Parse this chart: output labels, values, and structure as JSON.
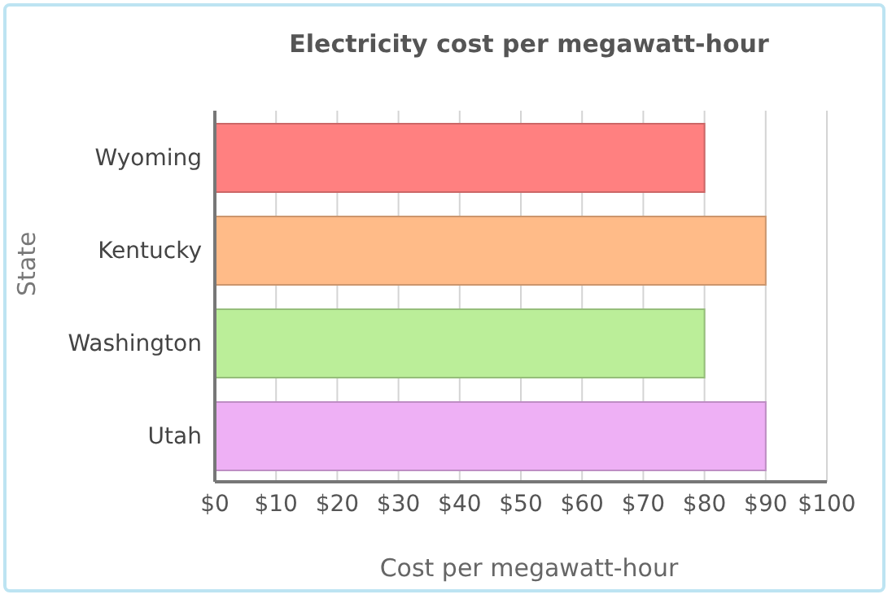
{
  "chart_data": {
    "type": "bar",
    "orientation": "horizontal",
    "title": "Electricity cost per megawatt-hour",
    "xlabel": "Cost per megawatt-hour",
    "ylabel": "State",
    "categories": [
      "Wyoming",
      "Kentucky",
      "Washington",
      "Utah"
    ],
    "values": [
      80,
      90,
      80,
      90
    ],
    "colors": [
      "#ff8080",
      "#ffbb88",
      "#bbee99",
      "#eeb0f5"
    ],
    "xlim": [
      0,
      100
    ],
    "xticks": [
      {
        "value": 0,
        "label": "$0"
      },
      {
        "value": 10,
        "label": "$10"
      },
      {
        "value": 20,
        "label": "$20"
      },
      {
        "value": 30,
        "label": "$30"
      },
      {
        "value": 40,
        "label": "$40"
      },
      {
        "value": 50,
        "label": "$50"
      },
      {
        "value": 60,
        "label": "$60"
      },
      {
        "value": 70,
        "label": "$70"
      },
      {
        "value": 80,
        "label": "$80"
      },
      {
        "value": 90,
        "label": "$90"
      },
      {
        "value": 100,
        "label": "$100"
      }
    ],
    "grid": "x"
  }
}
